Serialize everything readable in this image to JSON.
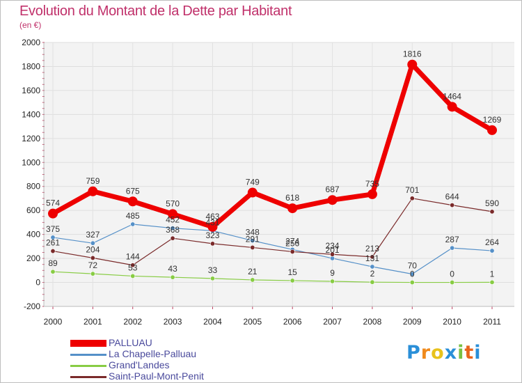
{
  "title": "Evolution du Montant de la Dette par Habitant",
  "subtitle": "(en €)",
  "logo": {
    "text": "Proxiti",
    "letters": [
      "P",
      "r",
      "o",
      "x",
      "i",
      "t",
      "i"
    ],
    "colors": [
      "#2a8fd8",
      "#f08a1c",
      "#e8c21c",
      "#2a8fd8",
      "#7ac043",
      "#e8641c",
      "#2a8fd8"
    ]
  },
  "chart_data": {
    "type": "line",
    "x": [
      "2000",
      "2001",
      "2002",
      "2003",
      "2004",
      "2005",
      "2006",
      "2007",
      "2008",
      "2009",
      "2010",
      "2011"
    ],
    "ylim": [
      -200,
      2000
    ],
    "yticks": [
      -200,
      0,
      200,
      400,
      600,
      800,
      1000,
      1200,
      1400,
      1600,
      1800,
      2000
    ],
    "grid": true,
    "legend_position": "bottom-left",
    "series": [
      {
        "name": "PALLUAU",
        "color": "#ee0000",
        "width": 7,
        "values": [
          574,
          759,
          675,
          570,
          463,
          749,
          618,
          687,
          735,
          1816,
          1464,
          1269
        ]
      },
      {
        "name": "La Chapelle-Palluau",
        "color": "#5590c8",
        "width": 1.2,
        "values": [
          375,
          327,
          485,
          452,
          431,
          348,
          274,
          201,
          131,
          70,
          287,
          264
        ]
      },
      {
        "name": "Grand'Landes",
        "color": "#88cc44",
        "width": 1.2,
        "values": [
          89,
          72,
          53,
          43,
          33,
          21,
          15,
          9,
          2,
          0,
          0,
          1
        ]
      },
      {
        "name": "Saint-Paul-Mont-Penit",
        "color": "#7a2a2a",
        "width": 1.2,
        "values": [
          261,
          204,
          144,
          368,
          323,
          291,
          256,
          234,
          213,
          701,
          644,
          590
        ]
      }
    ]
  }
}
